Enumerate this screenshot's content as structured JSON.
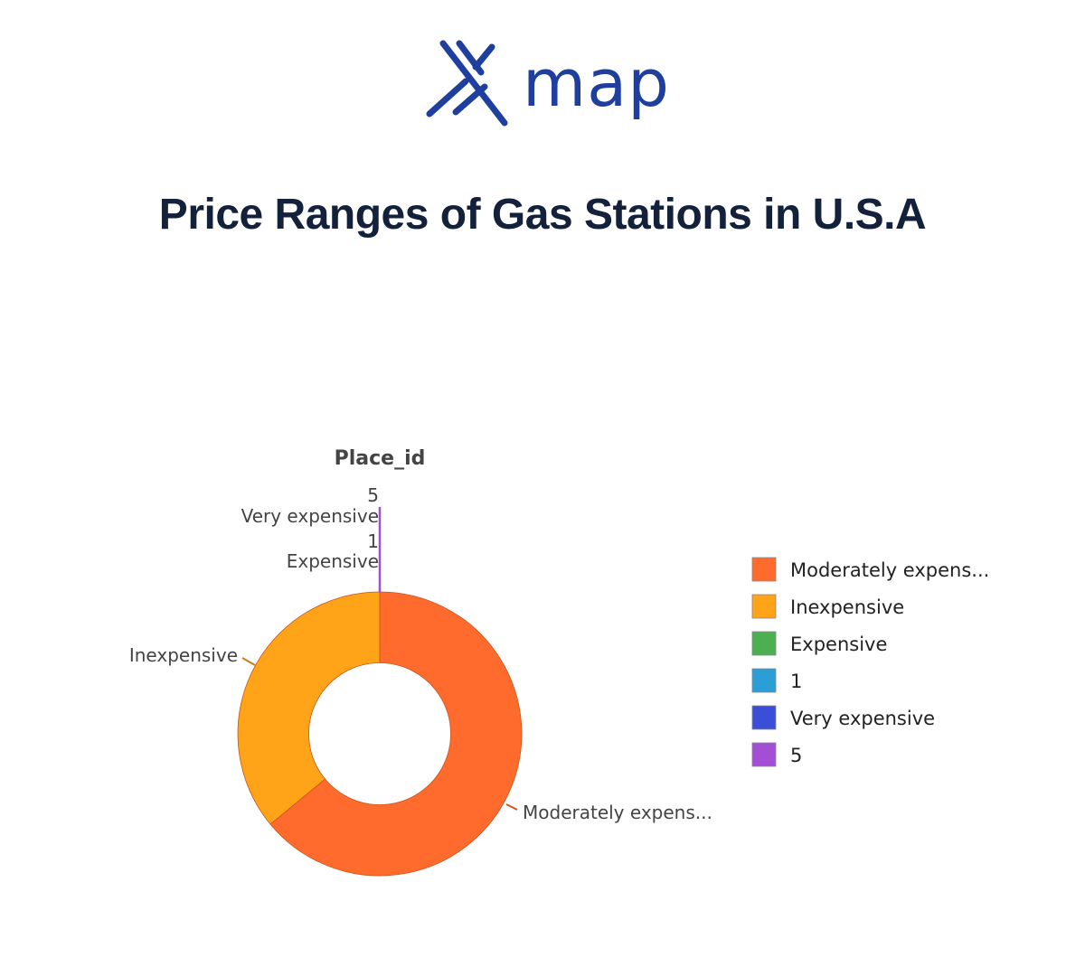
{
  "brand": {
    "name": "map",
    "color": "#1f3f9e"
  },
  "page_title": "Price Ranges of Gas Stations in U.S.A",
  "chart_data": {
    "type": "pie",
    "hole": 0.5,
    "title": "Place_id",
    "labels": [
      "Moderately expens...",
      "Inexpensive",
      "Expensive",
      "1",
      "Very expensive",
      "5"
    ],
    "values": [
      64,
      36,
      0.001,
      0.001,
      0.001,
      0.001
    ],
    "colors": [
      "#ff6b2c",
      "#ffa419",
      "#4caf50",
      "#2b9fd5",
      "#3b4fd6",
      "#a24fd6"
    ],
    "outside_labels": [
      "Moderately expens...",
      "Inexpensive",
      "Expensive",
      "1",
      "Very expensive",
      "5"
    ],
    "legend": {
      "position": "right",
      "entries": [
        "Moderately expens...",
        "Inexpensive",
        "Expensive",
        "1",
        "Very expensive",
        "5"
      ]
    }
  }
}
